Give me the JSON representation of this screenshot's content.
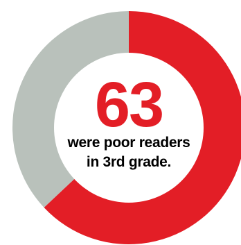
{
  "chart_data": {
    "type": "pie",
    "donut": true,
    "slices": [
      {
        "value": 63,
        "color": "#e31e26"
      },
      {
        "value": 37,
        "color": "#b9c1bb"
      }
    ],
    "center": {
      "value": "63",
      "value_color": "#e31e26",
      "label_lines": [
        "were poor readers",
        "in 3rd grade."
      ],
      "label_color": "#000000"
    }
  }
}
